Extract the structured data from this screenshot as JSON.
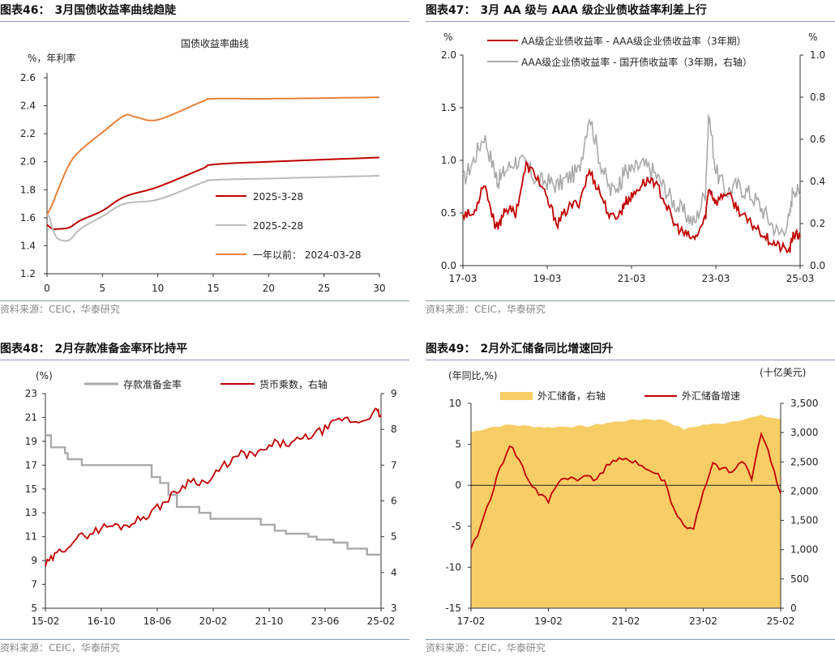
{
  "figures": [
    {
      "id": "fig46",
      "title_num": "图表46：",
      "title_text": "3月国债收益率曲线趋陡",
      "source": "资料来源：CEIC，华泰研究"
    },
    {
      "id": "fig47",
      "title_num": "图表47：",
      "title_text": "3月 AA 级与 AAA 级企业债收益率利差上行",
      "source": "资料来源：CEIC，华泰研究"
    },
    {
      "id": "fig48",
      "title_num": "图表48：",
      "title_text": "2月存款准备金率环比持平",
      "source": "资料来源：CEIC，华泰研究"
    },
    {
      "id": "fig49",
      "title_num": "图表49：",
      "title_text": "2月外汇储备同比增速回升",
      "source": "资料来源：CEIC，华泰研究"
    }
  ],
  "chart_data": [
    {
      "id": "fig46",
      "type": "line",
      "title": "国债收益率曲线",
      "ylabel": "%，年利率",
      "xlim": [
        0,
        30
      ],
      "ylim": [
        1.2,
        2.6
      ],
      "xticks": [
        0,
        5,
        10,
        15,
        20,
        25,
        30
      ],
      "yticks": [
        1.2,
        1.4,
        1.6,
        1.8,
        2.0,
        2.2,
        2.4,
        2.6
      ],
      "ytick_labels": [
        "1.2",
        "1.4",
        "1.6",
        "1.8",
        "2.0",
        "2.2",
        "2.4",
        "2.6"
      ],
      "legend_position": "lower-right",
      "series": [
        {
          "name": "2025-3-28",
          "color": "#c00000",
          "x": [
            0,
            0.5,
            1,
            2,
            3,
            5,
            7,
            10,
            14,
            15,
            20,
            30
          ],
          "y": [
            1.55,
            1.52,
            1.52,
            1.53,
            1.58,
            1.65,
            1.75,
            1.82,
            1.95,
            1.98,
            2.0,
            2.03
          ]
        },
        {
          "name": "2025-2-28",
          "color": "#bbbbbb",
          "x": [
            0,
            0.25,
            0.5,
            1,
            2,
            3,
            5,
            7,
            10,
            14,
            15,
            20,
            30
          ],
          "y": [
            1.62,
            1.6,
            1.52,
            1.45,
            1.44,
            1.52,
            1.61,
            1.7,
            1.73,
            1.85,
            1.87,
            1.88,
            1.9
          ]
        },
        {
          "name": "一年以前：  2024-03-28",
          "color": "#e8803a",
          "x": [
            0,
            0.5,
            1,
            2,
            3,
            5,
            7,
            8,
            10,
            14,
            15,
            20,
            30
          ],
          "y": [
            1.62,
            1.7,
            1.8,
            1.98,
            2.08,
            2.21,
            2.33,
            2.32,
            2.3,
            2.43,
            2.45,
            2.45,
            2.46
          ]
        }
      ]
    },
    {
      "id": "fig47",
      "type": "line",
      "ylabel_left": "%",
      "ylabel_right": "%",
      "x_ticks": [
        "17-03",
        "19-03",
        "21-03",
        "23-03",
        "25-03"
      ],
      "x_start": "2017-03",
      "x_end": "2025-03",
      "ylim_left": [
        0,
        2.0
      ],
      "ylim_right": [
        0,
        1.0
      ],
      "yticks_left": [
        "0.0",
        "0.5",
        "1.0",
        "1.5",
        "2.0"
      ],
      "yticks_right": [
        "0.0",
        "0.2",
        "0.4",
        "0.6",
        "0.8",
        "1.0"
      ],
      "legend_position": "top",
      "series": [
        {
          "name": "AA级企业债收益率 - AAA级企业债收益率（3年期）",
          "axis": "left",
          "color": "#c00000",
          "x": [
            "2017-03",
            "2017-06",
            "2017-09",
            "2017-12",
            "2018-01",
            "2018-03",
            "2018-06",
            "2018-09",
            "2018-12",
            "2019-03",
            "2019-06",
            "2019-09",
            "2019-12",
            "2020-03",
            "2020-06",
            "2020-09",
            "2020-12",
            "2021-01",
            "2021-03",
            "2021-06",
            "2021-09",
            "2021-12",
            "2022-03",
            "2022-06",
            "2022-09",
            "2022-12",
            "2023-01",
            "2023-03",
            "2023-06",
            "2023-09",
            "2023-12",
            "2024-03",
            "2024-06",
            "2024-09",
            "2024-12",
            "2025-01",
            "2025-03"
          ],
          "y": [
            0.5,
            0.48,
            0.8,
            0.4,
            0.35,
            0.55,
            0.5,
            0.95,
            0.85,
            0.62,
            0.4,
            0.55,
            0.6,
            0.9,
            0.7,
            0.45,
            0.5,
            0.6,
            0.65,
            0.78,
            0.82,
            0.65,
            0.4,
            0.3,
            0.25,
            0.45,
            0.75,
            0.6,
            0.7,
            0.55,
            0.42,
            0.35,
            0.25,
            0.18,
            0.14,
            0.3,
            0.27
          ]
        },
        {
          "name": "AAA级企业债收益率 - 国开债收益率（3年期，右轴）",
          "axis": "right",
          "color": "#aaaaaa",
          "x": [
            "2017-03",
            "2017-06",
            "2017-09",
            "2017-12",
            "2018-01",
            "2018-03",
            "2018-06",
            "2018-09",
            "2018-12",
            "2019-03",
            "2019-06",
            "2019-09",
            "2019-12",
            "2020-03",
            "2020-06",
            "2020-09",
            "2020-12",
            "2021-01",
            "2021-03",
            "2021-06",
            "2021-09",
            "2021-12",
            "2022-03",
            "2022-06",
            "2022-09",
            "2022-12",
            "2023-01",
            "2023-03",
            "2023-06",
            "2023-09",
            "2023-12",
            "2024-03",
            "2024-06",
            "2024-09",
            "2024-12",
            "2025-01",
            "2025-03"
          ],
          "y": [
            0.4,
            0.5,
            0.62,
            0.45,
            0.4,
            0.45,
            0.5,
            0.48,
            0.4,
            0.4,
            0.38,
            0.42,
            0.45,
            0.72,
            0.5,
            0.35,
            0.4,
            0.45,
            0.45,
            0.48,
            0.45,
            0.38,
            0.3,
            0.25,
            0.2,
            0.35,
            0.72,
            0.45,
            0.35,
            0.38,
            0.35,
            0.3,
            0.22,
            0.15,
            0.22,
            0.38,
            0.33
          ]
        }
      ]
    },
    {
      "id": "fig48",
      "type": "line",
      "ylabel_left": "(%)",
      "x_ticks": [
        "15-02",
        "16-10",
        "18-06",
        "20-02",
        "21-10",
        "23-06",
        "25-02"
      ],
      "x_start": "2015-02",
      "x_end": "2025-02",
      "ylim_left": [
        5,
        23
      ],
      "ylim_right": [
        3,
        9
      ],
      "yticks_left": [
        "5",
        "7",
        "9",
        "11",
        "13",
        "15",
        "17",
        "19",
        "21",
        "23"
      ],
      "yticks_right": [
        "3",
        "4",
        "5",
        "6",
        "7",
        "8",
        "9"
      ],
      "legend_position": "top",
      "series": [
        {
          "name": "存款准备金率",
          "axis": "left",
          "color": "#aaaaaa",
          "step": true,
          "x": [
            "2015-02",
            "2015-04",
            "2015-09",
            "2015-10",
            "2016-03",
            "2018-04",
            "2018-07",
            "2018-10",
            "2019-01",
            "2019-09",
            "2020-01",
            "2021-07",
            "2021-12",
            "2022-04",
            "2022-12",
            "2023-03",
            "2023-09",
            "2024-02",
            "2024-09",
            "2025-02"
          ],
          "y": [
            19.5,
            18.5,
            18.0,
            17.5,
            17.0,
            16.0,
            15.5,
            14.5,
            13.5,
            13.0,
            12.5,
            12.0,
            11.5,
            11.25,
            11.0,
            10.75,
            10.5,
            10.0,
            9.5,
            9.5
          ]
        },
        {
          "name": "货币乘数，右轴",
          "axis": "right",
          "color": "#c00000",
          "x": [
            "2015-02",
            "2015-06",
            "2015-12",
            "2016-06",
            "2016-12",
            "2017-06",
            "2017-12",
            "2018-06",
            "2018-12",
            "2019-06",
            "2019-12",
            "2020-06",
            "2020-12",
            "2021-06",
            "2021-12",
            "2022-06",
            "2022-12",
            "2023-06",
            "2023-12",
            "2024-06",
            "2024-12",
            "2025-02"
          ],
          "y": [
            4.2,
            4.5,
            4.9,
            5.1,
            5.3,
            5.3,
            5.5,
            5.8,
            6.2,
            6.6,
            6.5,
            7.0,
            7.3,
            7.3,
            7.6,
            7.6,
            7.8,
            8.0,
            8.3,
            8.2,
            8.5,
            8.4
          ]
        }
      ]
    },
    {
      "id": "fig49",
      "type": "area",
      "ylabel_left": "(年同比,%)",
      "ylabel_right": "(十亿美元)",
      "x_ticks": [
        "17-02",
        "19-02",
        "21-02",
        "23-02",
        "25-02"
      ],
      "x_start": "2017-02",
      "x_end": "2025-02",
      "ylim_left": [
        -15,
        10
      ],
      "ylim_right": [
        0,
        3500
      ],
      "yticks_left": [
        "-15",
        "-10",
        "-5",
        "0",
        "5",
        "10"
      ],
      "yticks_right": [
        "0",
        "500",
        "1,000",
        "1,500",
        "2,000",
        "2,500",
        "3,000",
        "3,500"
      ],
      "legend_position": "top",
      "series": [
        {
          "name": "外汇储备，右轴",
          "axis": "right",
          "color": "#f7ce66",
          "fill": true,
          "x": [
            "2017-02",
            "2017-08",
            "2018-02",
            "2018-08",
            "2019-02",
            "2019-08",
            "2020-02",
            "2020-08",
            "2021-02",
            "2021-08",
            "2022-02",
            "2022-08",
            "2023-02",
            "2023-08",
            "2024-02",
            "2024-08",
            "2025-02"
          ],
          "y": [
            3005,
            3092,
            3134,
            3110,
            3090,
            3107,
            3106,
            3165,
            3205,
            3232,
            3214,
            3055,
            3133,
            3160,
            3226,
            3288,
            3227
          ]
        },
        {
          "name": "外汇储备增速",
          "axis": "left",
          "color": "#c00000",
          "x": [
            "2017-02",
            "2017-05",
            "2017-08",
            "2017-11",
            "2018-02",
            "2018-05",
            "2018-08",
            "2018-11",
            "2019-02",
            "2019-05",
            "2019-08",
            "2019-11",
            "2020-02",
            "2020-05",
            "2020-08",
            "2020-11",
            "2021-02",
            "2021-05",
            "2021-08",
            "2021-11",
            "2022-02",
            "2022-05",
            "2022-08",
            "2022-11",
            "2023-02",
            "2023-05",
            "2023-08",
            "2023-11",
            "2024-02",
            "2024-05",
            "2024-08",
            "2024-11",
            "2025-02"
          ],
          "y": [
            -8.0,
            -5.0,
            -1.5,
            2.0,
            5.0,
            3.0,
            0.5,
            -1.0,
            -2.0,
            0.5,
            1.0,
            0.5,
            1.5,
            0.5,
            2.5,
            3.0,
            3.0,
            3.0,
            2.0,
            1.5,
            0.5,
            -3.0,
            -5.0,
            -5.2,
            -1.0,
            2.5,
            2.0,
            1.5,
            3.0,
            1.0,
            6.5,
            3.0,
            -1.0
          ]
        }
      ]
    }
  ]
}
